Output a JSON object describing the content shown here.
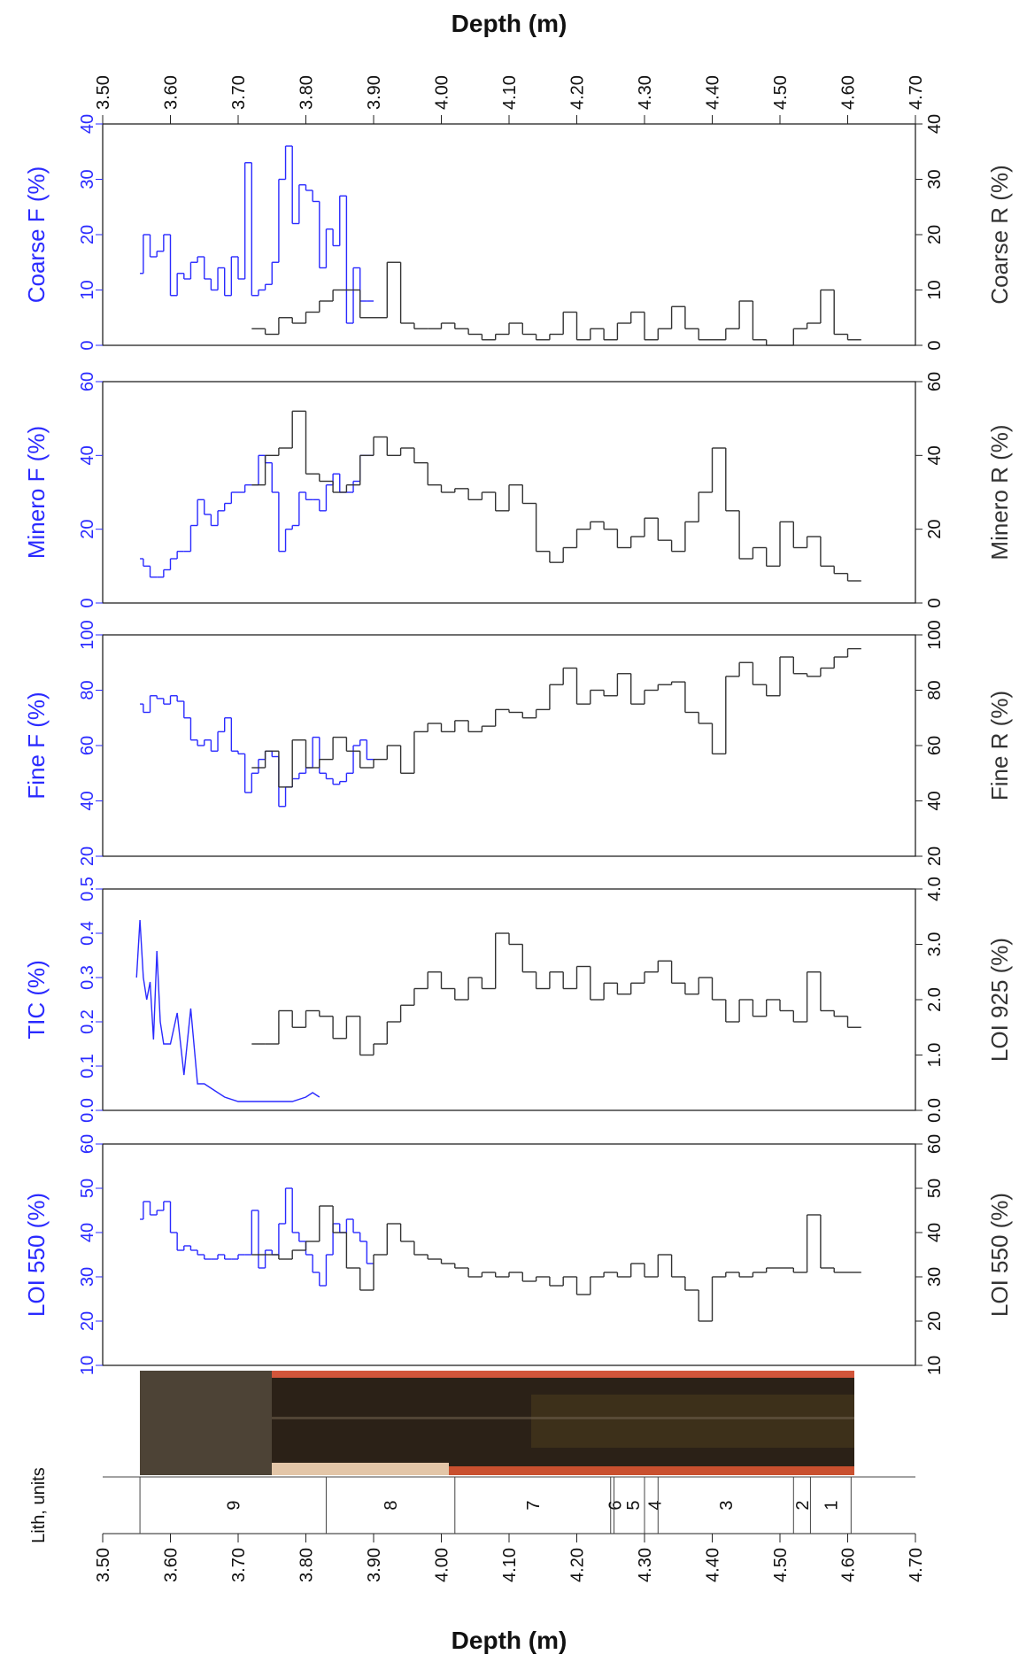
{
  "depth_axis": {
    "title": "Depth (m)",
    "xlim": [
      3.5,
      4.7
    ],
    "xticks": [
      {
        "value": 3.5,
        "label": "3.50"
      },
      {
        "value": 3.6,
        "label": "3.60"
      },
      {
        "value": 3.7,
        "label": "3.70"
      },
      {
        "value": 3.8,
        "label": "3.80"
      },
      {
        "value": 3.9,
        "label": "3.90"
      },
      {
        "value": 4.0,
        "label": "4.00"
      },
      {
        "value": 4.1,
        "label": "4.10"
      },
      {
        "value": 4.2,
        "label": "4.20"
      },
      {
        "value": 4.3,
        "label": "4.30"
      },
      {
        "value": 4.4,
        "label": "4.40"
      },
      {
        "value": 4.5,
        "label": "4.50"
      },
      {
        "value": 4.6,
        "label": "4.60"
      },
      {
        "value": 4.7,
        "label": "4.70"
      }
    ]
  },
  "chart_data": [
    {
      "type": "line",
      "ylabel": "Coarse F (%)",
      "y2label": "Coarse R (%)",
      "ylim": [
        0,
        40
      ],
      "yticks": [
        0,
        10,
        20,
        30,
        40
      ],
      "y2lim": [
        0,
        40
      ],
      "y2ticks": [
        0,
        10,
        20,
        30,
        40
      ],
      "series": [
        {
          "color": "#2a2aff",
          "step": true,
          "x": [
            3.555,
            3.56,
            3.57,
            3.58,
            3.59,
            3.6,
            3.61,
            3.62,
            3.63,
            3.64,
            3.65,
            3.66,
            3.67,
            3.68,
            3.69,
            3.7,
            3.71,
            3.72,
            3.73,
            3.74,
            3.75,
            3.76,
            3.77,
            3.78,
            3.79,
            3.8,
            3.81,
            3.82,
            3.83,
            3.84,
            3.85,
            3.86,
            3.87,
            3.88,
            3.89
          ],
          "values": [
            13,
            20,
            16,
            17,
            20,
            9,
            13,
            12,
            15,
            16,
            12,
            10,
            14,
            9,
            16,
            12,
            33,
            9,
            10,
            11,
            15,
            30,
            36,
            22,
            29,
            28,
            26,
            14,
            21,
            18,
            27,
            4,
            14,
            8,
            8
          ]
        },
        {
          "color": "#333333",
          "step": true,
          "axis": "y2",
          "x": [
            3.72,
            3.74,
            3.76,
            3.78,
            3.8,
            3.82,
            3.84,
            3.86,
            3.88,
            3.9,
            3.92,
            3.94,
            3.96,
            3.98,
            4.0,
            4.02,
            4.04,
            4.06,
            4.08,
            4.1,
            4.12,
            4.14,
            4.16,
            4.18,
            4.2,
            4.22,
            4.24,
            4.26,
            4.28,
            4.3,
            4.32,
            4.34,
            4.36,
            4.38,
            4.4,
            4.42,
            4.44,
            4.46,
            4.48,
            4.5,
            4.52,
            4.54,
            4.56,
            4.58,
            4.6
          ],
          "values": [
            3,
            2,
            5,
            4,
            6,
            8,
            10,
            10,
            5,
            5,
            15,
            4,
            3,
            3,
            4,
            3,
            2,
            1,
            2,
            4,
            2,
            1,
            2,
            6,
            1,
            3,
            1,
            4,
            6,
            1,
            3,
            7,
            3,
            1,
            1,
            3,
            8,
            1,
            0,
            0,
            3,
            4,
            10,
            2,
            1
          ]
        }
      ]
    },
    {
      "type": "line",
      "ylabel": "Minero F (%)",
      "y2label": "Minero R (%)",
      "ylim": [
        0,
        60
      ],
      "yticks": [
        0,
        20,
        40,
        60
      ],
      "y2lim": [
        0,
        60
      ],
      "y2ticks": [
        0,
        20,
        40,
        60
      ],
      "series": [
        {
          "color": "#2a2aff",
          "step": true,
          "x": [
            3.555,
            3.56,
            3.57,
            3.58,
            3.59,
            3.6,
            3.61,
            3.62,
            3.63,
            3.64,
            3.65,
            3.66,
            3.67,
            3.68,
            3.69,
            3.7,
            3.71,
            3.72,
            3.73,
            3.74,
            3.75,
            3.76,
            3.77,
            3.78,
            3.79,
            3.8,
            3.81,
            3.82,
            3.83,
            3.84,
            3.85,
            3.86,
            3.87,
            3.88,
            3.89
          ],
          "values": [
            12,
            10,
            7,
            7,
            9,
            12,
            14,
            14,
            21,
            28,
            24,
            21,
            25,
            27,
            30,
            30,
            32,
            32,
            40,
            38,
            30,
            14,
            20,
            21,
            30,
            28,
            28,
            25,
            32,
            35,
            30,
            30,
            33,
            40,
            40
          ]
        },
        {
          "color": "#333333",
          "step": true,
          "axis": "y2",
          "x": [
            3.72,
            3.74,
            3.76,
            3.78,
            3.8,
            3.82,
            3.84,
            3.86,
            3.88,
            3.9,
            3.92,
            3.94,
            3.96,
            3.98,
            4.0,
            4.02,
            4.04,
            4.06,
            4.08,
            4.1,
            4.12,
            4.14,
            4.16,
            4.18,
            4.2,
            4.22,
            4.24,
            4.26,
            4.28,
            4.3,
            4.32,
            4.34,
            4.36,
            4.38,
            4.4,
            4.42,
            4.44,
            4.46,
            4.48,
            4.5,
            4.52,
            4.54,
            4.56,
            4.58,
            4.6
          ],
          "values": [
            32,
            40,
            42,
            52,
            35,
            33,
            30,
            32,
            40,
            45,
            40,
            42,
            38,
            32,
            30,
            31,
            28,
            30,
            25,
            32,
            27,
            14,
            11,
            15,
            20,
            22,
            20,
            15,
            18,
            23,
            17,
            14,
            22,
            30,
            42,
            25,
            12,
            15,
            10,
            22,
            15,
            18,
            10,
            8,
            6
          ]
        }
      ]
    },
    {
      "type": "line",
      "ylabel": "Fine F (%)",
      "y2label": "Fine R (%)",
      "ylim": [
        20,
        100
      ],
      "yticks": [
        20,
        40,
        60,
        80,
        100
      ],
      "y2lim": [
        20,
        100
      ],
      "y2ticks": [
        20,
        40,
        60,
        80,
        100
      ],
      "series": [
        {
          "color": "#2a2aff",
          "step": true,
          "x": [
            3.555,
            3.56,
            3.57,
            3.58,
            3.59,
            3.6,
            3.61,
            3.62,
            3.63,
            3.64,
            3.65,
            3.66,
            3.67,
            3.68,
            3.69,
            3.7,
            3.71,
            3.72,
            3.73,
            3.74,
            3.75,
            3.76,
            3.77,
            3.78,
            3.79,
            3.8,
            3.81,
            3.82,
            3.83,
            3.84,
            3.85,
            3.86,
            3.87,
            3.88,
            3.89
          ],
          "values": [
            75,
            72,
            78,
            77,
            75,
            78,
            76,
            70,
            62,
            60,
            62,
            58,
            65,
            70,
            58,
            57,
            43,
            50,
            55,
            58,
            56,
            38,
            45,
            48,
            50,
            52,
            63,
            50,
            48,
            46,
            47,
            50,
            60,
            62,
            55
          ]
        },
        {
          "color": "#333333",
          "step": true,
          "axis": "y2",
          "x": [
            3.72,
            3.74,
            3.76,
            3.78,
            3.8,
            3.82,
            3.84,
            3.86,
            3.88,
            3.9,
            3.92,
            3.94,
            3.96,
            3.98,
            4.0,
            4.02,
            4.04,
            4.06,
            4.08,
            4.1,
            4.12,
            4.14,
            4.16,
            4.18,
            4.2,
            4.22,
            4.24,
            4.26,
            4.28,
            4.3,
            4.32,
            4.34,
            4.36,
            4.38,
            4.4,
            4.42,
            4.44,
            4.46,
            4.48,
            4.5,
            4.52,
            4.54,
            4.56,
            4.58,
            4.6
          ],
          "values": [
            52,
            58,
            45,
            62,
            52,
            55,
            63,
            58,
            52,
            55,
            60,
            50,
            65,
            68,
            65,
            69,
            65,
            67,
            73,
            72,
            70,
            73,
            82,
            88,
            75,
            80,
            78,
            86,
            75,
            80,
            82,
            83,
            72,
            68,
            57,
            85,
            90,
            82,
            78,
            92,
            86,
            85,
            88,
            92,
            95
          ]
        }
      ]
    },
    {
      "type": "line",
      "ylabel": "TIC (%)",
      "y2label": "LOI 925 (%)",
      "ylim": [
        0,
        0.5
      ],
      "yticks": [
        {
          "value": 0,
          "label": "0.0"
        },
        0.1,
        0.2,
        0.3,
        0.4,
        0.5
      ],
      "y2lim": [
        0,
        4
      ],
      "y2ticks": [
        {
          "value": 0,
          "label": "0.0"
        },
        {
          "value": 1,
          "label": "1.0"
        },
        {
          "value": 2,
          "label": "2.0"
        },
        {
          "value": 3,
          "label": "3.0"
        },
        {
          "value": 4,
          "label": "4.0"
        }
      ],
      "series": [
        {
          "color": "#2a2aff",
          "step": false,
          "x": [
            3.55,
            3.555,
            3.56,
            3.565,
            3.57,
            3.575,
            3.58,
            3.585,
            3.59,
            3.6,
            3.61,
            3.62,
            3.63,
            3.64,
            3.65,
            3.66,
            3.68,
            3.7,
            3.72,
            3.74,
            3.76,
            3.78,
            3.8,
            3.81,
            3.82
          ],
          "values": [
            0.3,
            0.43,
            0.3,
            0.25,
            0.29,
            0.16,
            0.36,
            0.2,
            0.15,
            0.15,
            0.22,
            0.08,
            0.23,
            0.06,
            0.06,
            0.05,
            0.03,
            0.02,
            0.02,
            0.02,
            0.02,
            0.02,
            0.03,
            0.04,
            0.03
          ]
        },
        {
          "color": "#333333",
          "step": true,
          "axis": "y2",
          "x": [
            3.72,
            3.74,
            3.76,
            3.78,
            3.8,
            3.82,
            3.84,
            3.86,
            3.88,
            3.9,
            3.92,
            3.94,
            3.96,
            3.98,
            4.0,
            4.02,
            4.04,
            4.06,
            4.08,
            4.1,
            4.12,
            4.14,
            4.16,
            4.18,
            4.2,
            4.22,
            4.24,
            4.26,
            4.28,
            4.3,
            4.32,
            4.34,
            4.36,
            4.38,
            4.4,
            4.42,
            4.44,
            4.46,
            4.48,
            4.5,
            4.52,
            4.54,
            4.56,
            4.58,
            4.6
          ],
          "values": [
            1.2,
            1.2,
            1.8,
            1.5,
            1.8,
            1.7,
            1.3,
            1.7,
            1.0,
            1.2,
            1.6,
            1.9,
            2.2,
            2.5,
            2.2,
            2.0,
            2.4,
            2.2,
            3.2,
            3.0,
            2.5,
            2.2,
            2.5,
            2.2,
            2.6,
            2.0,
            2.3,
            2.1,
            2.3,
            2.5,
            2.7,
            2.3,
            2.1,
            2.4,
            2.0,
            1.6,
            2.0,
            1.7,
            2.0,
            1.8,
            1.6,
            2.5,
            1.8,
            1.7,
            1.5
          ]
        }
      ]
    },
    {
      "type": "line",
      "ylabel": "LOI 550 (%)",
      "y2label": "LOI 550 (%)",
      "ylim": [
        10,
        60
      ],
      "yticks": [
        10,
        20,
        30,
        40,
        50,
        60
      ],
      "y2lim": [
        10,
        60
      ],
      "y2ticks": [
        10,
        20,
        30,
        40,
        50,
        60
      ],
      "series": [
        {
          "color": "#2a2aff",
          "step": true,
          "x": [
            3.555,
            3.56,
            3.57,
            3.58,
            3.59,
            3.6,
            3.61,
            3.62,
            3.63,
            3.64,
            3.65,
            3.66,
            3.67,
            3.68,
            3.69,
            3.7,
            3.71,
            3.72,
            3.73,
            3.74,
            3.75,
            3.76,
            3.77,
            3.78,
            3.79,
            3.8,
            3.81,
            3.82,
            3.83,
            3.84,
            3.85,
            3.86,
            3.87,
            3.88,
            3.89
          ],
          "values": [
            43,
            47,
            44,
            45,
            47,
            40,
            36,
            37,
            36,
            35,
            34,
            34,
            35,
            34,
            34,
            35,
            35,
            45,
            32,
            36,
            35,
            42,
            50,
            40,
            38,
            35,
            31,
            28,
            35,
            42,
            40,
            43,
            40,
            38,
            33
          ]
        },
        {
          "color": "#333333",
          "step": true,
          "axis": "y2",
          "x": [
            3.72,
            3.74,
            3.76,
            3.78,
            3.8,
            3.82,
            3.84,
            3.86,
            3.88,
            3.9,
            3.92,
            3.94,
            3.96,
            3.98,
            4.0,
            4.02,
            4.04,
            4.06,
            4.08,
            4.1,
            4.12,
            4.14,
            4.16,
            4.18,
            4.2,
            4.22,
            4.24,
            4.26,
            4.28,
            4.3,
            4.32,
            4.34,
            4.36,
            4.38,
            4.4,
            4.42,
            4.44,
            4.46,
            4.48,
            4.5,
            4.52,
            4.54,
            4.56,
            4.58,
            4.6
          ],
          "values": [
            35,
            35,
            34,
            36,
            38,
            46,
            40,
            32,
            27,
            35,
            42,
            38,
            35,
            34,
            33,
            32,
            30,
            31,
            30,
            31,
            29,
            30,
            28,
            30,
            26,
            30,
            31,
            30,
            33,
            30,
            35,
            30,
            27,
            20,
            30,
            31,
            30,
            31,
            32,
            32,
            31,
            44,
            32,
            31,
            31
          ]
        }
      ]
    }
  ],
  "lithology": {
    "label": "Lith, units",
    "units": [
      {
        "name": 9,
        "from": 3.555,
        "to": 3.83
      },
      {
        "name": 8,
        "from": 3.83,
        "to": 4.02
      },
      {
        "name": 7,
        "from": 4.02,
        "to": 4.25
      },
      {
        "name": 6,
        "from": 4.25,
        "to": 4.255
      },
      {
        "name": 5,
        "from": 4.255,
        "to": 4.3
      },
      {
        "name": 4,
        "from": 4.3,
        "to": 4.32
      },
      {
        "name": 3,
        "from": 4.32,
        "to": 4.52
      },
      {
        "name": 2,
        "from": 4.52,
        "to": 4.545
      },
      {
        "name": 1,
        "from": 4.545,
        "to": 4.605
      }
    ]
  }
}
